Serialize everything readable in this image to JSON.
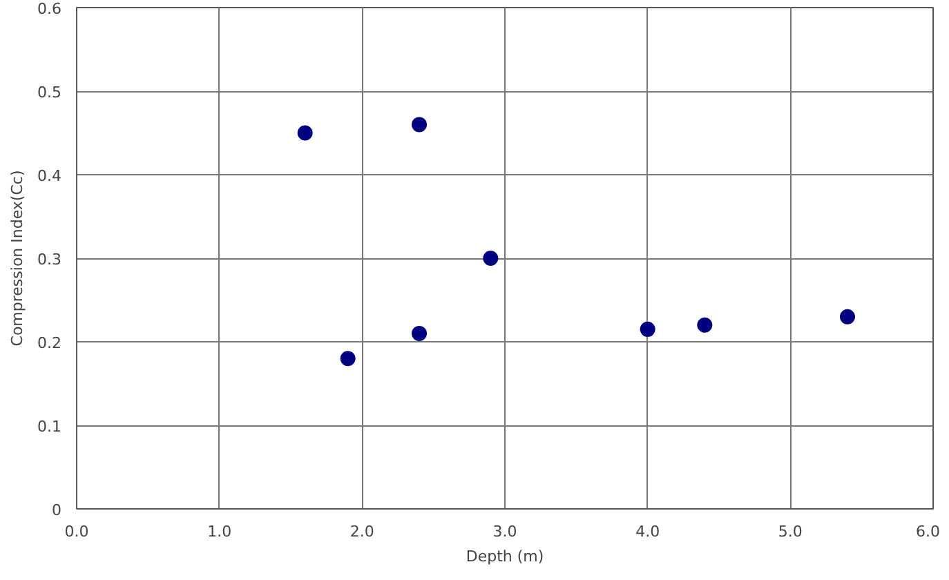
{
  "chart_data": {
    "type": "scatter",
    "xlabel": "Depth (m)",
    "ylabel": "Compression Index(Cc)",
    "x": [
      1.6,
      1.9,
      2.4,
      2.4,
      2.9,
      4.0,
      4.4,
      5.4
    ],
    "values": [
      0.45,
      0.18,
      0.46,
      0.21,
      0.3,
      0.215,
      0.22,
      0.23
    ],
    "color": "#000080",
    "marker": "circle",
    "grid": true,
    "xlim": [
      0,
      6
    ],
    "ylim": [
      0,
      0.6
    ],
    "xticks": [
      {
        "value": 0,
        "label": "0.0"
      },
      {
        "value": 1,
        "label": "1.0"
      },
      {
        "value": 2,
        "label": "2.0"
      },
      {
        "value": 3,
        "label": "3.0"
      },
      {
        "value": 4,
        "label": "4.0"
      },
      {
        "value": 5,
        "label": "5.0"
      },
      {
        "value": 6,
        "label": "6.0"
      }
    ],
    "yticks": [
      0,
      0.1,
      0.2,
      0.3,
      0.4,
      0.5,
      0.6
    ]
  }
}
